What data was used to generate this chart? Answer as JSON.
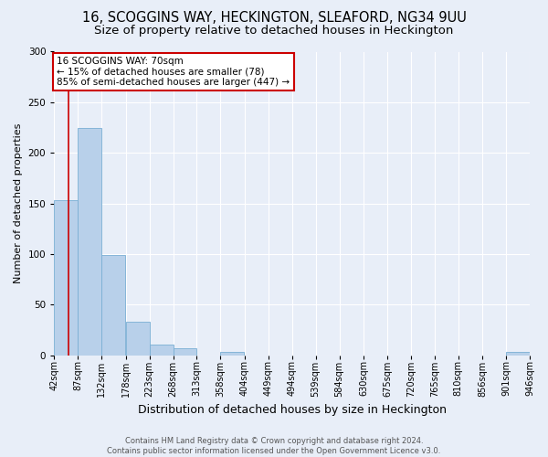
{
  "title": "16, SCOGGINS WAY, HECKINGTON, SLEAFORD, NG34 9UU",
  "subtitle": "Size of property relative to detached houses in Heckington",
  "xlabel": "Distribution of detached houses by size in Heckington",
  "ylabel": "Number of detached properties",
  "footer_line1": "Contains HM Land Registry data © Crown copyright and database right 2024.",
  "footer_line2": "Contains public sector information licensed under the Open Government Licence v3.0.",
  "bin_edges": [
    42,
    87,
    132,
    178,
    223,
    268,
    313,
    358,
    404,
    449,
    494,
    539,
    584,
    630,
    675,
    720,
    765,
    810,
    856,
    901,
    946
  ],
  "bin_counts": [
    153,
    225,
    99,
    33,
    11,
    7,
    0,
    3,
    0,
    0,
    0,
    0,
    0,
    0,
    0,
    0,
    0,
    0,
    0,
    3
  ],
  "bar_color": "#b8d0ea",
  "bar_edge_color": "#7aafd4",
  "property_size": 70,
  "annotation_line1": "16 SCOGGINS WAY: 70sqm",
  "annotation_line2": "← 15% of detached houses are smaller (78)",
  "annotation_line3": "85% of semi-detached houses are larger (447) →",
  "annotation_box_color": "white",
  "annotation_box_edge_color": "#cc0000",
  "vline_color": "#cc0000",
  "ylim": [
    0,
    300
  ],
  "yticks": [
    0,
    50,
    100,
    150,
    200,
    250,
    300
  ],
  "background_color": "#e8eef8",
  "grid_color": "white",
  "title_fontsize": 10.5,
  "subtitle_fontsize": 9.5,
  "ylabel_fontsize": 8,
  "xlabel_fontsize": 9,
  "tick_fontsize": 7,
  "ytick_fontsize": 7.5,
  "annotation_fontsize": 7.5,
  "footer_fontsize": 6
}
